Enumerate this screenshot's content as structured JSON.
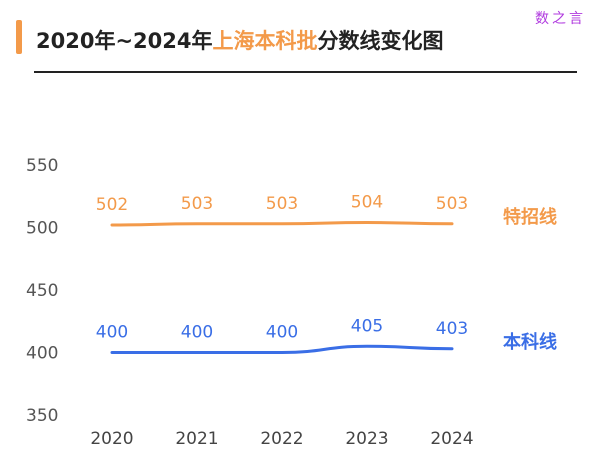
{
  "header": {
    "title_before": "2020年~2024年",
    "title_highlight": "上海本科批",
    "title_after": "分数线变化图",
    "accent_color": "#f39a4a"
  },
  "watermark": "数之言",
  "chart_data": {
    "type": "line",
    "title": "2020年~2024年上海本科批分数线变化图",
    "categories": [
      "2020",
      "2021",
      "2022",
      "2023",
      "2024"
    ],
    "series": [
      {
        "name": "特招线",
        "values": [
          502,
          503,
          503,
          504,
          503
        ],
        "color": "#f39a4a"
      },
      {
        "name": "本科线",
        "values": [
          400,
          400,
          400,
          405,
          403
        ],
        "color": "#3a6ee6"
      }
    ],
    "y_ticks": [
      350,
      400,
      450,
      500,
      550
    ],
    "ylim": [
      350,
      550
    ],
    "grid": false,
    "legend": "right"
  }
}
